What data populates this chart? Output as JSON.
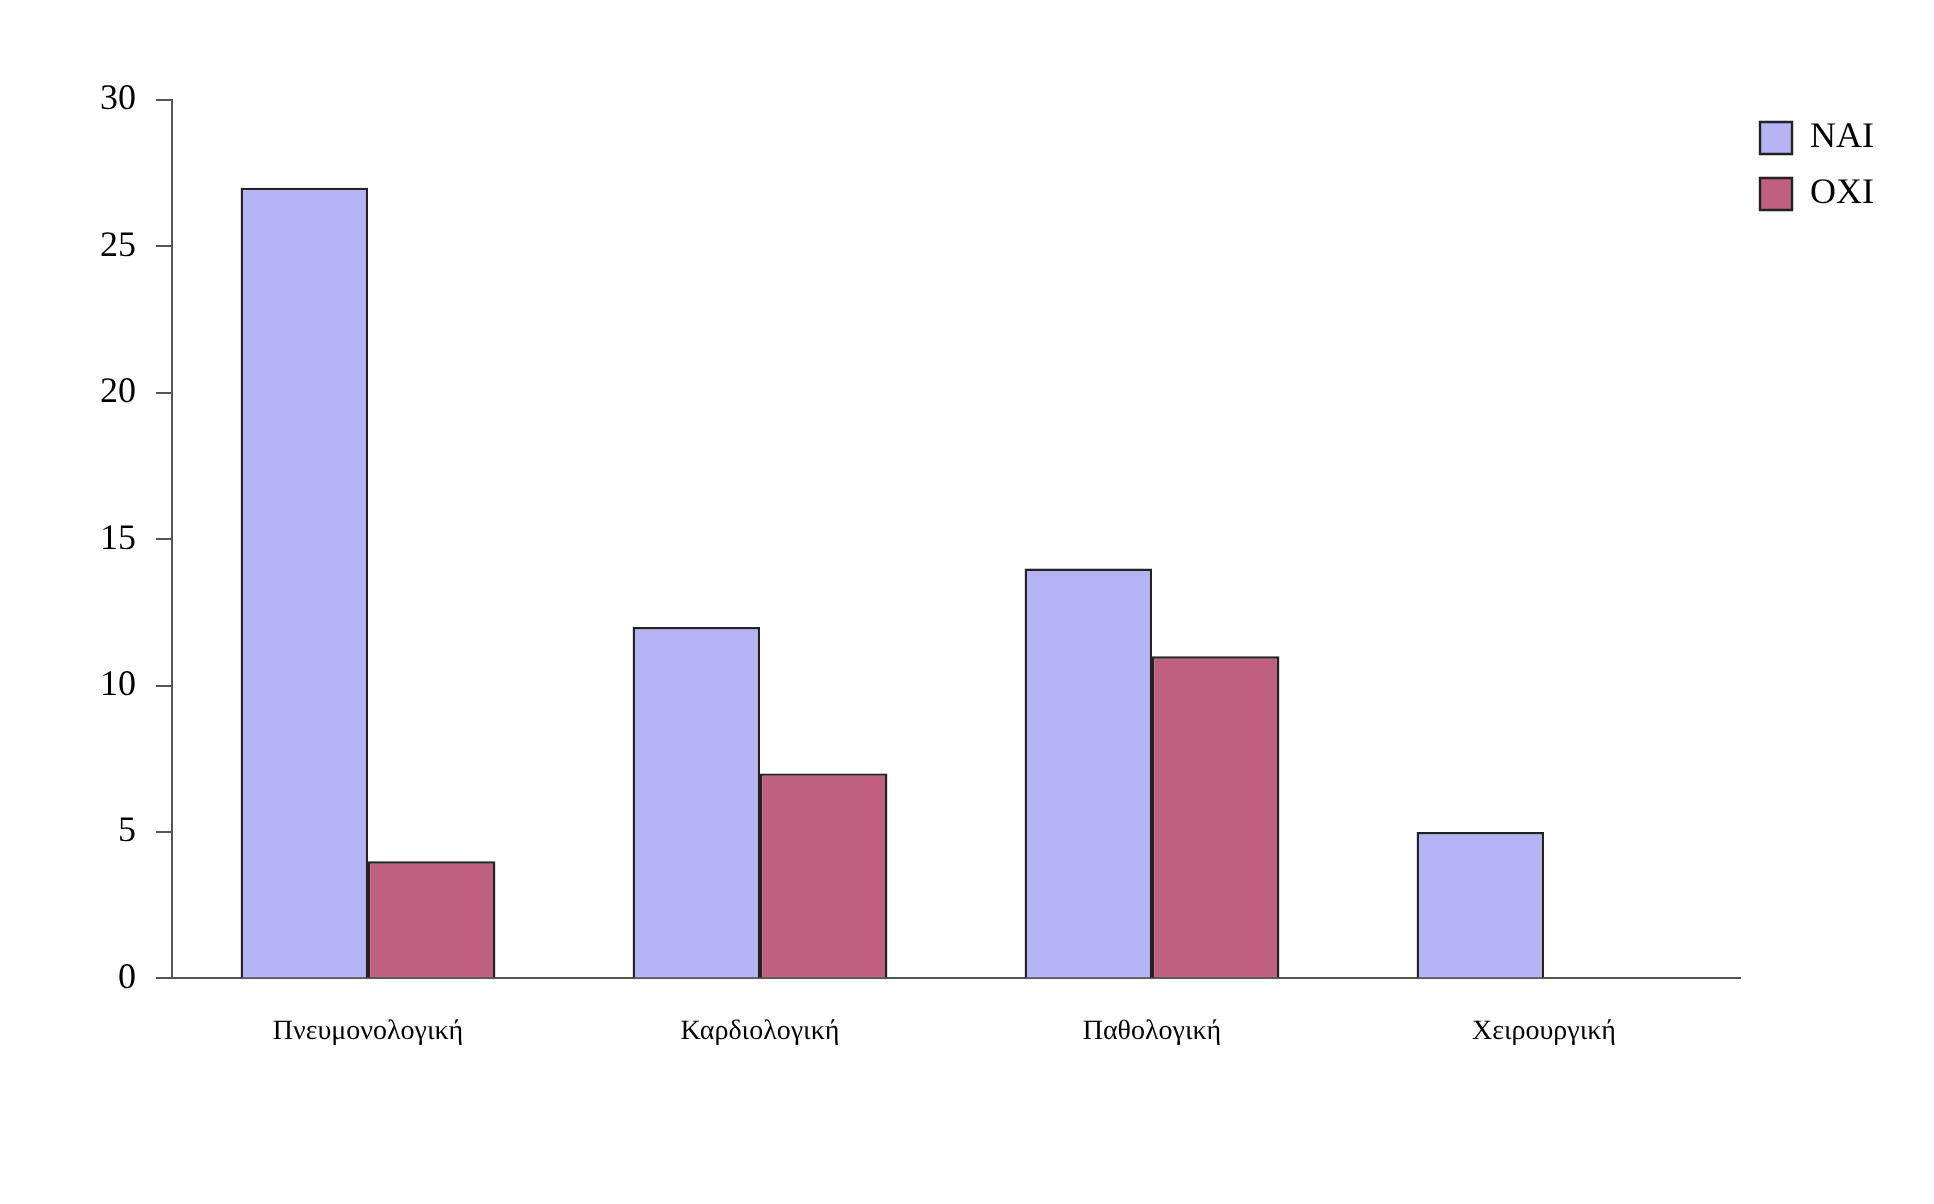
{
  "chart_data": {
    "type": "bar",
    "categories": [
      "Πνευμονολογική",
      "Καρδιολογική",
      "Παθολογική",
      "Χειρουργική"
    ],
    "series": [
      {
        "name": "NAI",
        "color": "#b4b4f4",
        "values": [
          27,
          12,
          14,
          5
        ]
      },
      {
        "name": "OXI",
        "color": "#c06080",
        "values": [
          4,
          7,
          11,
          0
        ]
      }
    ],
    "ylim": [
      0,
      30
    ],
    "yticks": [
      0,
      5,
      10,
      15,
      20,
      25,
      30
    ],
    "grid": false,
    "legend": "top right"
  }
}
